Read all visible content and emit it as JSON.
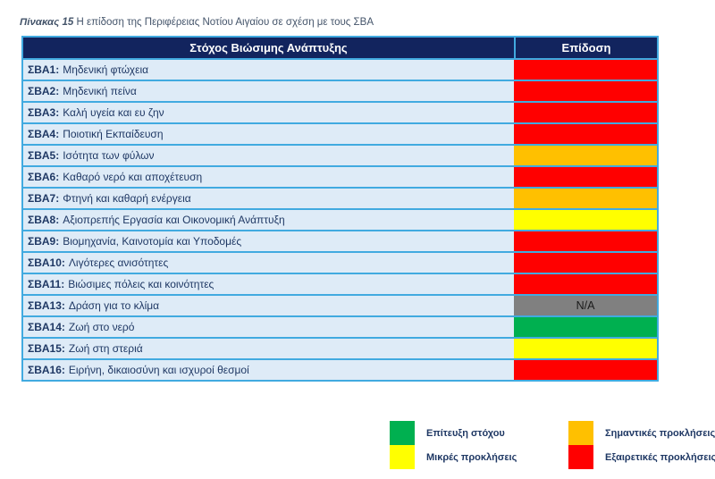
{
  "caption": {
    "prefix": "Πίνακας 15",
    "text": " Η επίδοση της Περιφέρειας Νοτίου Αιγαίου σε σχέση με τους ΣΒΑ"
  },
  "table": {
    "headers": {
      "goal": "Στόχος Βιώσιμης Ανάπτυξης",
      "performance": "Επίδοση"
    },
    "rows": [
      {
        "code": "ΣΒΑ1:",
        "label": "Μηδενική φτώχεια",
        "performance": "red",
        "value": ""
      },
      {
        "code": "ΣΒΑ2:",
        "label": "Μηδενική πείνα",
        "performance": "red",
        "value": ""
      },
      {
        "code": "ΣΒΑ3:",
        "label": "Καλή υγεία και ευ ζην",
        "performance": "red",
        "value": ""
      },
      {
        "code": "ΣΒΑ4:",
        "label": "Ποιοτική Εκπαίδευση",
        "performance": "red",
        "value": ""
      },
      {
        "code": "ΣΒΑ5:",
        "label": "Ισότητα των φύλων",
        "performance": "orange",
        "value": ""
      },
      {
        "code": "ΣΒΑ6:",
        "label": "Καθαρό νερό και αποχέτευση",
        "performance": "red",
        "value": ""
      },
      {
        "code": "ΣΒΑ7:",
        "label": "Φτηνή και καθαρή ενέργεια",
        "performance": "orange",
        "value": ""
      },
      {
        "code": "ΣΒΑ8:",
        "label": "Αξιοπρεπής Εργασία και Οικονομική Ανάπτυξη",
        "performance": "yellow",
        "value": ""
      },
      {
        "code": "ΣΒΑ9:",
        "label": "Βιομηχανία, Καινοτομία και Υποδομές",
        "performance": "red",
        "value": ""
      },
      {
        "code": "ΣΒΑ10:",
        "label": "Λιγότερες ανισότητες",
        "performance": "red",
        "value": ""
      },
      {
        "code": "ΣΒΑ11:",
        "label": "Βιώσιμες πόλεις και κοινότητες",
        "performance": "red",
        "value": ""
      },
      {
        "code": "ΣΒΑ13:",
        "label": "Δράση για το κλίμα",
        "performance": "gray",
        "value": "N/A"
      },
      {
        "code": "ΣΒΑ14:",
        "label": "Ζωή στο νερό",
        "performance": "green",
        "value": ""
      },
      {
        "code": "ΣΒΑ15:",
        "label": "Ζωή στη στεριά",
        "performance": "yellow",
        "value": ""
      },
      {
        "code": "ΣΒΑ16:",
        "label": "Ειρήνη, δικαιοσύνη και ισχυροί θεσμοί",
        "performance": "red",
        "value": ""
      }
    ]
  },
  "legend": {
    "columns": [
      [
        {
          "color": "green",
          "label": "Επίτευξη στόχου"
        },
        {
          "color": "yellow",
          "label": "Μικρές προκλήσεις"
        }
      ],
      [
        {
          "color": "orange",
          "label": "Σημαντικές προκλήσεις"
        },
        {
          "color": "red",
          "label": "Εξαιρετικές προκλήσεις"
        }
      ]
    ]
  },
  "colors": {
    "red": "#FF0000",
    "orange": "#FFC000",
    "yellow": "#FFFF00",
    "green": "#00B050",
    "gray": "#808080",
    "header_bg": "#12245E",
    "row_bg": "#DEEBF7",
    "border": "#41AAE0",
    "text": "#1F3864"
  }
}
